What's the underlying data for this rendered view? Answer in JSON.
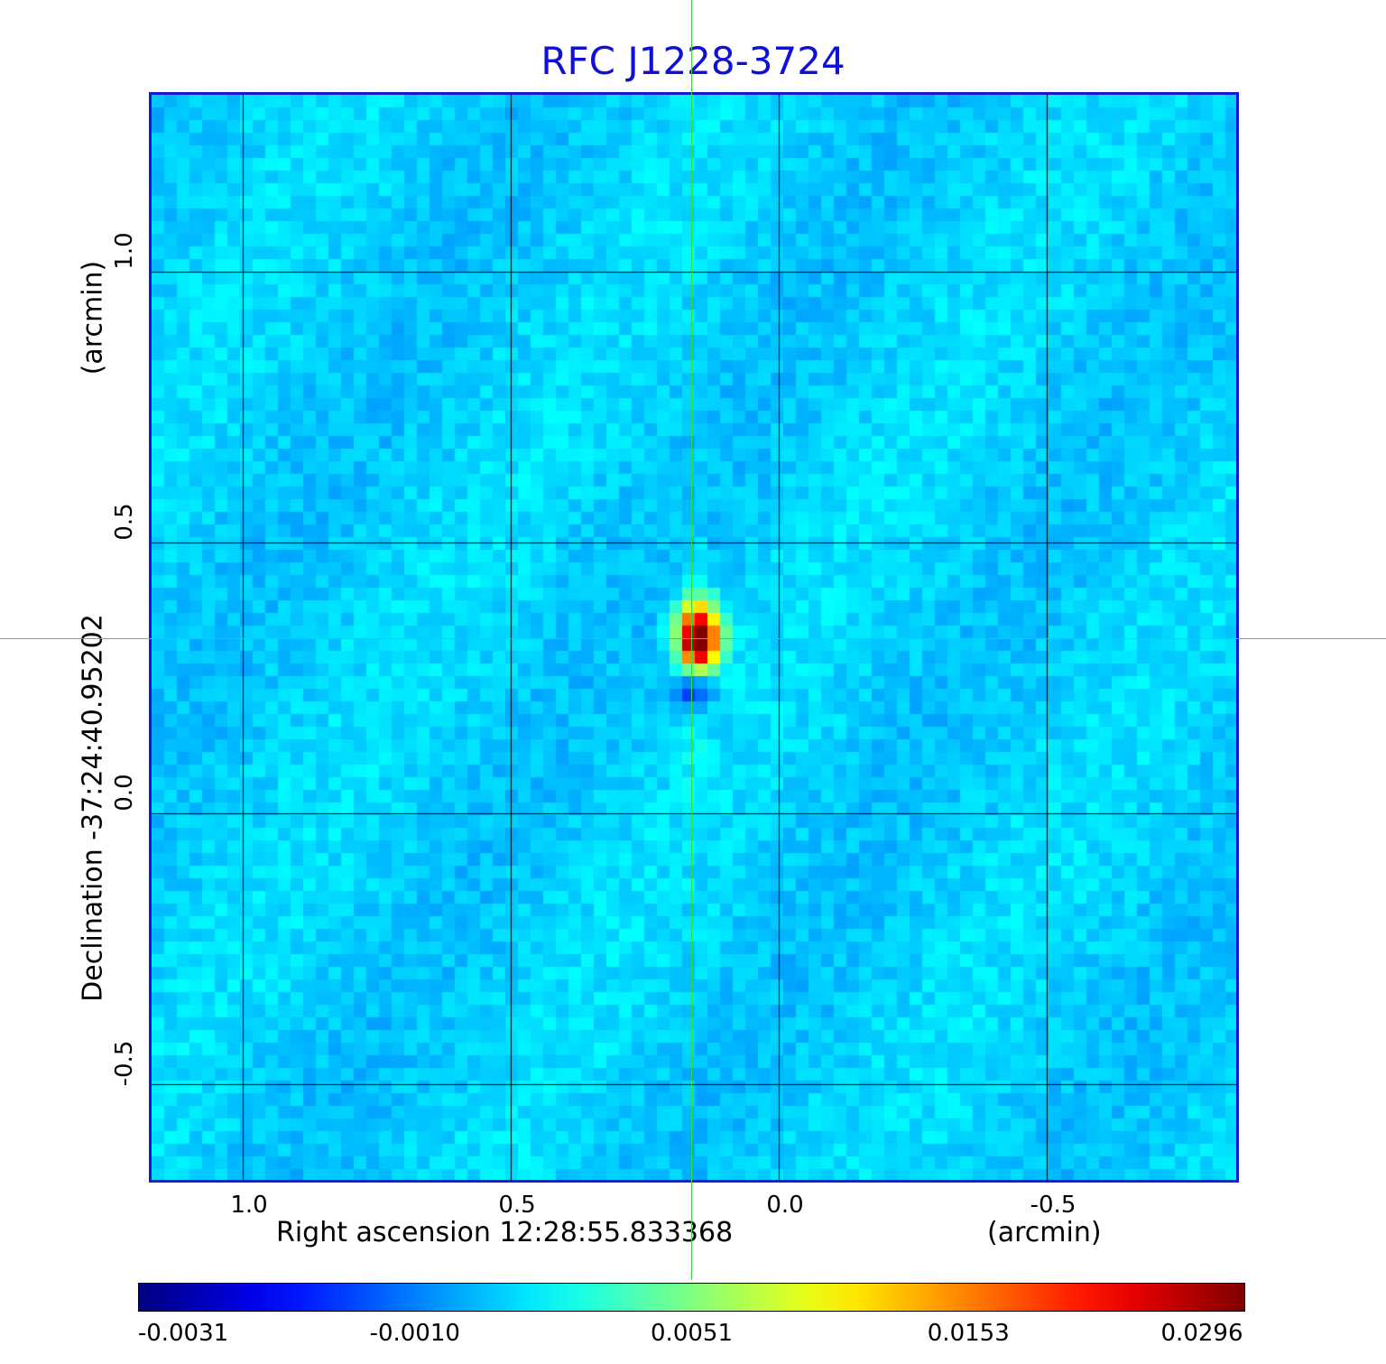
{
  "title": "RFC J1228-3724",
  "x_axis": {
    "label": "Right ascension  12:28:55.833368",
    "unit": "(arcmin)",
    "ticks": [
      {
        "value": 1.0,
        "label": "1.0"
      },
      {
        "value": 0.5,
        "label": "0.5"
      },
      {
        "value": 0.0,
        "label": "0.0"
      },
      {
        "value": -0.5,
        "label": "-0.5"
      }
    ],
    "range": [
      1.17,
      -0.85
    ]
  },
  "y_axis": {
    "label": "Declination  -37:24:40.95202",
    "unit": "(arcmin)",
    "ticks": [
      {
        "value": 1.0,
        "label": "1.0"
      },
      {
        "value": 0.5,
        "label": "0.5"
      },
      {
        "value": 0.0,
        "label": "0.0"
      },
      {
        "value": -0.5,
        "label": "-0.5"
      }
    ],
    "range": [
      -0.68,
      1.32
    ]
  },
  "colorbar": {
    "colormap": "jet",
    "ticks": [
      "-0.0031",
      "-0.0010",
      "0.0051",
      "0.0153",
      "0.0296"
    ]
  },
  "source": {
    "ra_offset": 0.16,
    "dec_offset": 0.32
  },
  "colors": {
    "title": "#1010d8",
    "frame": "#1818d0",
    "crosshair": "#30e030",
    "grid": "#000000"
  }
}
